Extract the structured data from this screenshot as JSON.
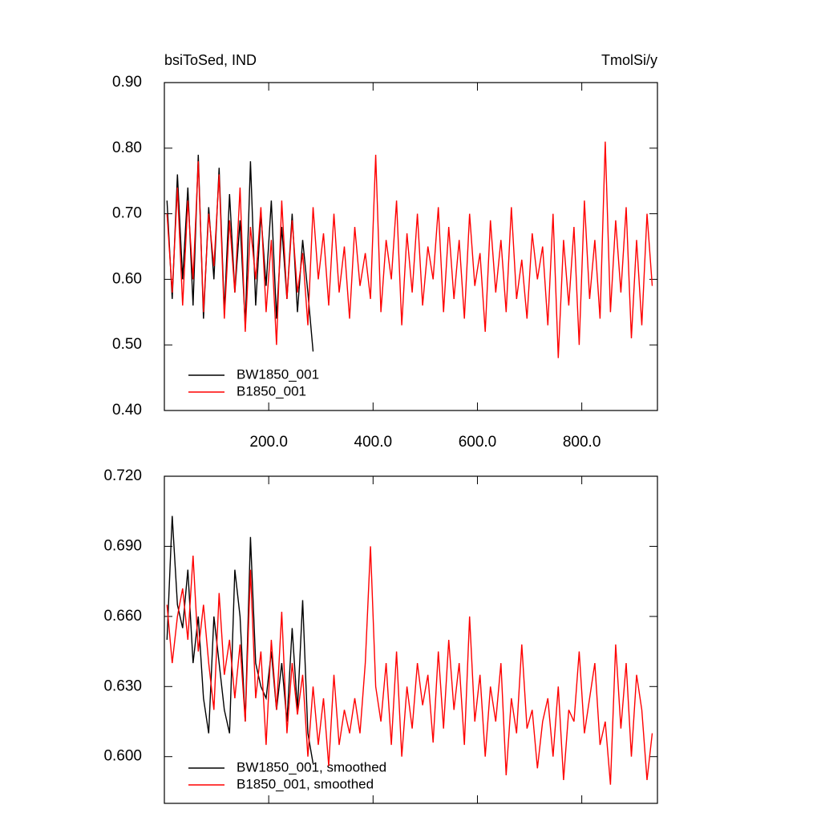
{
  "chart_data": [
    {
      "type": "line",
      "title": "bsiToSed, IND",
      "right_title": "TmolSi/y",
      "xlim": [
        0,
        945
      ],
      "ylim": [
        0.4,
        0.9
      ],
      "xticks": [
        {
          "value": 200,
          "label": "200.0"
        },
        {
          "value": 400,
          "label": "400.0"
        },
        {
          "value": 600,
          "label": "600.0"
        },
        {
          "value": 800,
          "label": "800.0"
        }
      ],
      "yticks": [
        {
          "value": 0.4,
          "label": "0.40"
        },
        {
          "value": 0.5,
          "label": "0.50"
        },
        {
          "value": 0.6,
          "label": "0.60"
        },
        {
          "value": 0.7,
          "label": "0.70"
        },
        {
          "value": 0.8,
          "label": "0.80"
        },
        {
          "value": 0.9,
          "label": "0.90"
        }
      ],
      "legend": "lower left",
      "series": [
        {
          "name": "BW1850_001",
          "color": "#000000",
          "x": [
            5,
            15,
            25,
            35,
            45,
            55,
            65,
            75,
            85,
            95,
            105,
            115,
            125,
            135,
            145,
            155,
            165,
            175,
            185,
            195,
            205,
            215,
            225,
            235,
            245,
            255,
            265,
            275,
            285
          ],
          "values": [
            0.72,
            0.57,
            0.76,
            0.6,
            0.74,
            0.56,
            0.79,
            0.54,
            0.71,
            0.6,
            0.77,
            0.55,
            0.73,
            0.58,
            0.69,
            0.53,
            0.78,
            0.56,
            0.7,
            0.59,
            0.72,
            0.54,
            0.68,
            0.57,
            0.7,
            0.55,
            0.66,
            0.58,
            0.49
          ]
        },
        {
          "name": "B1850_001",
          "color": "#ff0000",
          "x": [
            5,
            15,
            25,
            35,
            45,
            55,
            65,
            75,
            85,
            95,
            105,
            115,
            125,
            135,
            145,
            155,
            165,
            175,
            185,
            195,
            205,
            215,
            225,
            235,
            245,
            255,
            265,
            275,
            285,
            295,
            305,
            315,
            325,
            335,
            345,
            355,
            365,
            375,
            385,
            395,
            405,
            415,
            425,
            435,
            445,
            455,
            465,
            475,
            485,
            495,
            505,
            515,
            525,
            535,
            545,
            555,
            565,
            575,
            585,
            595,
            605,
            615,
            625,
            635,
            645,
            655,
            665,
            675,
            685,
            695,
            705,
            715,
            725,
            735,
            745,
            755,
            765,
            775,
            785,
            795,
            805,
            815,
            825,
            835,
            845,
            855,
            865,
            875,
            885,
            895,
            905,
            915,
            925,
            935
          ],
          "values": [
            0.7,
            0.58,
            0.74,
            0.56,
            0.72,
            0.6,
            0.78,
            0.55,
            0.7,
            0.62,
            0.76,
            0.54,
            0.69,
            0.58,
            0.74,
            0.52,
            0.68,
            0.6,
            0.71,
            0.55,
            0.66,
            0.5,
            0.72,
            0.57,
            0.69,
            0.58,
            0.64,
            0.53,
            0.71,
            0.6,
            0.67,
            0.56,
            0.7,
            0.58,
            0.65,
            0.54,
            0.68,
            0.59,
            0.64,
            0.57,
            0.79,
            0.55,
            0.66,
            0.6,
            0.72,
            0.53,
            0.67,
            0.58,
            0.7,
            0.56,
            0.65,
            0.6,
            0.71,
            0.55,
            0.68,
            0.57,
            0.66,
            0.54,
            0.7,
            0.59,
            0.64,
            0.52,
            0.69,
            0.58,
            0.66,
            0.55,
            0.71,
            0.57,
            0.63,
            0.54,
            0.67,
            0.6,
            0.65,
            0.53,
            0.7,
            0.48,
            0.66,
            0.56,
            0.68,
            0.5,
            0.72,
            0.57,
            0.66,
            0.54,
            0.81,
            0.55,
            0.69,
            0.58,
            0.71,
            0.51,
            0.66,
            0.53,
            0.7,
            0.59
          ]
        }
      ]
    },
    {
      "type": "line",
      "xlim": [
        0,
        945
      ],
      "ylim": [
        0.58,
        0.72
      ],
      "xticks": [
        200,
        400,
        600,
        800
      ],
      "yticks": [
        {
          "value": 0.6,
          "label": "0.600"
        },
        {
          "value": 0.63,
          "label": "0.630"
        },
        {
          "value": 0.66,
          "label": "0.660"
        },
        {
          "value": 0.69,
          "label": "0.690"
        },
        {
          "value": 0.72,
          "label": "0.720"
        }
      ],
      "legend": "lower left",
      "series": [
        {
          "name": "BW1850_001, smoothed",
          "color": "#000000",
          "x": [
            5,
            15,
            25,
            35,
            45,
            55,
            65,
            75,
            85,
            95,
            105,
            115,
            125,
            135,
            145,
            155,
            165,
            175,
            185,
            195,
            205,
            215,
            225,
            235,
            245,
            255,
            265,
            275,
            285
          ],
          "values": [
            0.65,
            0.703,
            0.665,
            0.655,
            0.68,
            0.64,
            0.66,
            0.625,
            0.61,
            0.66,
            0.64,
            0.62,
            0.61,
            0.68,
            0.66,
            0.615,
            0.694,
            0.64,
            0.63,
            0.625,
            0.645,
            0.62,
            0.64,
            0.615,
            0.655,
            0.62,
            0.667,
            0.61,
            0.597
          ]
        },
        {
          "name": "B1850_001, smoothed",
          "color": "#ff0000",
          "x": [
            5,
            15,
            25,
            35,
            45,
            55,
            65,
            75,
            85,
            95,
            105,
            115,
            125,
            135,
            145,
            155,
            165,
            175,
            185,
            195,
            205,
            215,
            225,
            235,
            245,
            255,
            265,
            275,
            285,
            295,
            305,
            315,
            325,
            335,
            345,
            355,
            365,
            375,
            385,
            395,
            405,
            415,
            425,
            435,
            445,
            455,
            465,
            475,
            485,
            495,
            505,
            515,
            525,
            535,
            545,
            555,
            565,
            575,
            585,
            595,
            605,
            615,
            625,
            635,
            645,
            655,
            665,
            675,
            685,
            695,
            705,
            715,
            725,
            735,
            745,
            755,
            765,
            775,
            785,
            795,
            805,
            815,
            825,
            835,
            845,
            855,
            865,
            875,
            885,
            895,
            905,
            915,
            925,
            935
          ],
          "values": [
            0.665,
            0.64,
            0.66,
            0.672,
            0.65,
            0.686,
            0.645,
            0.665,
            0.64,
            0.62,
            0.67,
            0.635,
            0.65,
            0.625,
            0.648,
            0.615,
            0.68,
            0.625,
            0.645,
            0.605,
            0.65,
            0.62,
            0.662,
            0.61,
            0.64,
            0.618,
            0.635,
            0.6,
            0.63,
            0.605,
            0.625,
            0.596,
            0.635,
            0.605,
            0.62,
            0.61,
            0.625,
            0.61,
            0.64,
            0.69,
            0.63,
            0.615,
            0.64,
            0.605,
            0.645,
            0.6,
            0.63,
            0.612,
            0.64,
            0.622,
            0.635,
            0.606,
            0.645,
            0.612,
            0.65,
            0.62,
            0.64,
            0.605,
            0.66,
            0.615,
            0.635,
            0.6,
            0.63,
            0.615,
            0.64,
            0.592,
            0.625,
            0.61,
            0.648,
            0.612,
            0.62,
            0.595,
            0.615,
            0.625,
            0.6,
            0.63,
            0.59,
            0.62,
            0.615,
            0.645,
            0.61,
            0.625,
            0.64,
            0.605,
            0.615,
            0.588,
            0.648,
            0.612,
            0.64,
            0.6,
            0.635,
            0.62,
            0.59,
            0.61
          ]
        }
      ]
    }
  ]
}
